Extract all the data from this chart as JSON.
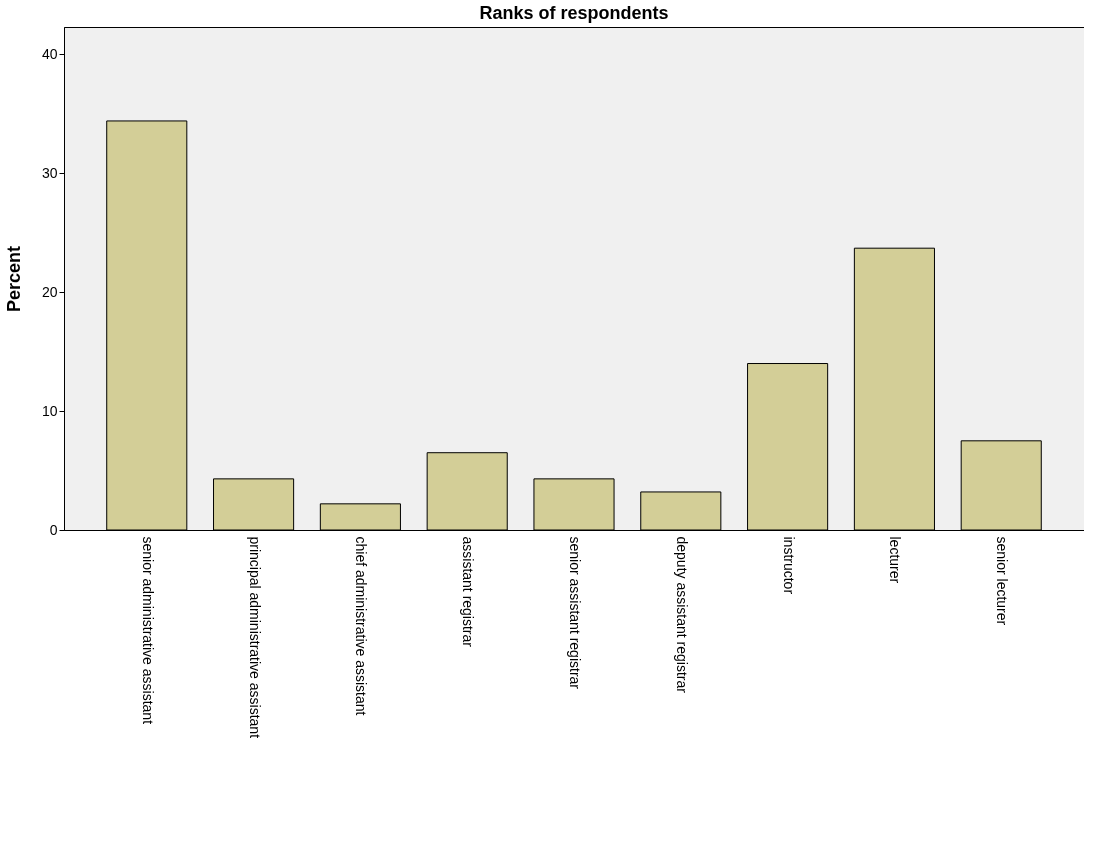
{
  "chart_data": {
    "type": "bar",
    "title": "Ranks of respondents",
    "ylabel": "Percent",
    "categories": [
      "senior administrative assistant",
      "principal administrative assistant",
      "chief administrative assistant",
      "assistant registrar",
      "senior assistant registrar",
      "deputy assistant registrar",
      "instructor",
      "lecturer",
      "senior lecturer"
    ],
    "values": [
      34.4,
      4.3,
      2.2,
      6.5,
      4.3,
      3.2,
      14.0,
      23.7,
      7.5
    ],
    "color": "#d3ce97",
    "ylim": [
      0,
      42.3
    ],
    "yticks": [
      0,
      10,
      20,
      30,
      40
    ],
    "grid": false
  }
}
